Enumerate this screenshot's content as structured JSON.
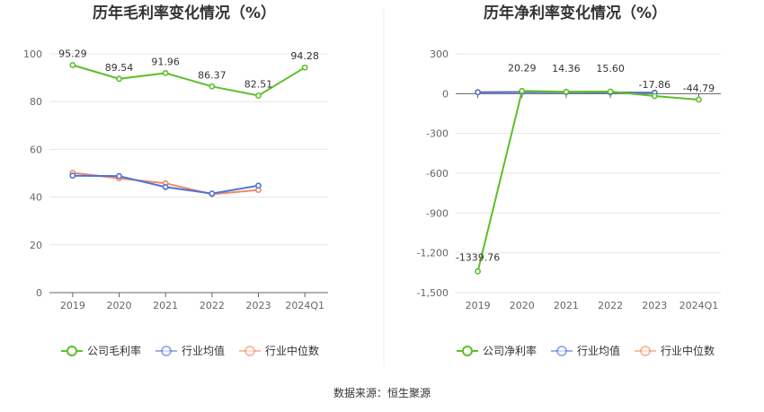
{
  "source": "数据来源：恒生聚源",
  "colors": {
    "company": "#5cbf2a",
    "industry_avg": "#4e73d9",
    "industry_median": "#ef8a62"
  },
  "chart_data": [
    {
      "type": "line",
      "title": "历年毛利率变化情况（%）",
      "categories": [
        "2019",
        "2020",
        "2021",
        "2022",
        "2023",
        "2024Q1"
      ],
      "ylim": [
        0,
        100
      ],
      "yticks": [
        "0",
        "20",
        "40",
        "60",
        "80",
        "100"
      ],
      "grid": true,
      "legend_placement": "bottom",
      "series": [
        {
          "name": "公司毛利率",
          "key": "company",
          "values": [
            95.29,
            89.54,
            91.96,
            86.37,
            82.51,
            94.28
          ],
          "labels": [
            "95.29",
            "89.54",
            "91.96",
            "86.37",
            "82.51",
            "94.28"
          ]
        },
        {
          "name": "行业均值",
          "key": "industry_avg",
          "values": [
            49.0,
            48.8,
            44.2,
            41.5,
            44.8,
            null
          ]
        },
        {
          "name": "行业中位数",
          "key": "industry_median",
          "values": [
            50.2,
            47.9,
            45.8,
            41.2,
            43.0,
            null
          ]
        }
      ]
    },
    {
      "type": "line",
      "title": "历年净利率变化情况（%）",
      "categories": [
        "2019",
        "2020",
        "2021",
        "2022",
        "2023",
        "2024Q1"
      ],
      "ylim": [
        -1500,
        300
      ],
      "yticks": [
        "300",
        "0",
        "-300",
        "-600",
        "-900",
        "-1,200",
        "-1,500"
      ],
      "grid": true,
      "legend_placement": "bottom",
      "series": [
        {
          "name": "公司净利率",
          "key": "company",
          "values": [
            -1339.76,
            20.29,
            14.36,
            15.6,
            -17.86,
            -44.79
          ],
          "labels": [
            "-1339.76",
            "20.29",
            "14.36",
            "15.60",
            "-17.86",
            "-44.79"
          ]
        },
        {
          "name": "行业均值",
          "key": "industry_avg",
          "values": [
            10,
            12,
            11,
            9,
            6,
            null
          ]
        },
        {
          "name": "行业中位数",
          "key": "industry_median",
          "values": [
            12,
            13,
            12,
            10,
            8,
            null
          ]
        }
      ]
    }
  ]
}
